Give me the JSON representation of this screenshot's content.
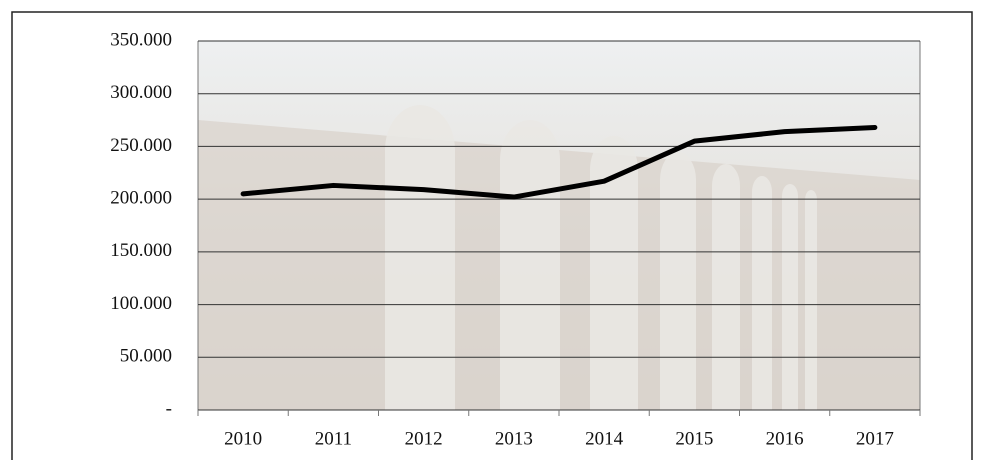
{
  "chart_data": {
    "type": "line",
    "categories": [
      "2010",
      "2011",
      "2012",
      "2013",
      "2014",
      "2015",
      "2016",
      "2017"
    ],
    "series": [
      {
        "color": "#000000",
        "values": [
          205000,
          213000,
          209000,
          202000,
          217000,
          255000,
          264000,
          268000
        ]
      }
    ],
    "ylim": [
      0,
      350000
    ],
    "yticks": [
      {
        "value": 0,
        "label": "-"
      },
      {
        "value": 50000,
        "label": "50.000"
      },
      {
        "value": 100000,
        "label": "100.000"
      },
      {
        "value": 150000,
        "label": "150.000"
      },
      {
        "value": 200000,
        "label": "200.000"
      },
      {
        "value": 250000,
        "label": "250.000"
      },
      {
        "value": 300000,
        "label": "300.000"
      },
      {
        "value": 350000,
        "label": "350.000"
      }
    ],
    "grid": true
  }
}
